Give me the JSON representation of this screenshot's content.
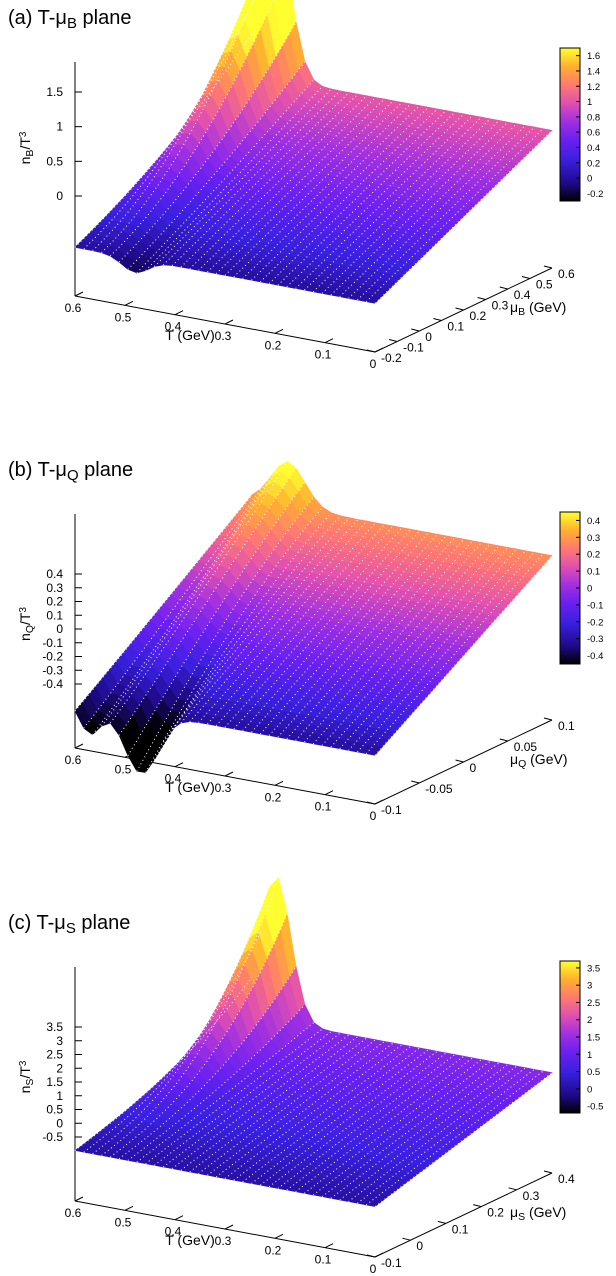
{
  "chart_data": [
    {
      "type": "surface",
      "title": "(a) T-μ",
      "title_sub": "B",
      "title_suffix": " plane",
      "z_label": "n",
      "z_label_sub": "B",
      "z_label_suffix": "/T",
      "z_label_sup": "3",
      "x_label": "T (GeV)",
      "y_label": "μ",
      "y_label_sub": "B",
      "y_label_suffix": " (GeV)",
      "x_ticks": [
        "0.6",
        "0.5",
        "0.4",
        "0.3",
        "0.2",
        "0.1",
        "0"
      ],
      "x_range": [
        0,
        0.6
      ],
      "y_ticks": [
        "-0.2",
        "-0.1",
        "0",
        "0.1",
        "0.2",
        "0.3",
        "0.4",
        "0.5",
        "0.6"
      ],
      "y_range": [
        -0.2,
        0.6
      ],
      "z_ticks": [
        "1.5",
        "1",
        "0.5",
        "0"
      ],
      "z_range": [
        -0.3,
        1.7
      ],
      "colorbar_ticks": [
        "1.6",
        "1.4",
        "1.2",
        "1",
        "0.8",
        "0.6",
        "0.4",
        "0.2",
        "0",
        "-0.2"
      ],
      "colorbar_range": [
        -0.3,
        1.7
      ],
      "grid": "white dotted mesh on surface",
      "colormap": [
        "#000000",
        "#1f0a8a",
        "#3a20e0",
        "#6a20f0",
        "#a030e0",
        "#e050b0",
        "#ff7a70",
        "#ffb030",
        "#ffff30"
      ]
    },
    {
      "type": "surface",
      "title": "(b) T-μ",
      "title_sub": "Q",
      "title_suffix": " plane",
      "z_label": "n",
      "z_label_sub": "Q",
      "z_label_suffix": "/T",
      "z_label_sup": "3",
      "x_label": "T (GeV)",
      "y_label": "μ",
      "y_label_sub": "Q",
      "y_label_suffix": " (GeV)",
      "x_ticks": [
        "0.6",
        "0.5",
        "0.4",
        "0.3",
        "0.2",
        "0.1",
        "0"
      ],
      "x_range": [
        0,
        0.6
      ],
      "y_ticks": [
        "-0.1",
        "-0.05",
        "0",
        "0.05",
        "0.1"
      ],
      "y_range": [
        -0.1,
        0.1
      ],
      "z_ticks": [
        "0.4",
        "0.3",
        "0.2",
        "0.1",
        "0",
        "-0.1",
        "-0.2",
        "-0.3",
        "-0.4"
      ],
      "z_range": [
        -0.45,
        0.45
      ],
      "colorbar_ticks": [
        "0.4",
        "0.3",
        "0.2",
        "0.1",
        "0",
        "-0.1",
        "-0.2",
        "-0.3",
        "-0.4"
      ],
      "colorbar_range": [
        -0.45,
        0.45
      ],
      "grid": "white dotted mesh on surface",
      "colormap": [
        "#000000",
        "#1f0a8a",
        "#3a20e0",
        "#6a20f0",
        "#a030e0",
        "#e050b0",
        "#ff7a70",
        "#ffb030",
        "#ffff30"
      ]
    },
    {
      "type": "surface",
      "title": "(c) T-μ",
      "title_sub": "S",
      "title_suffix": " plane",
      "z_label": "n",
      "z_label_sub": "S",
      "z_label_suffix": "/T",
      "z_label_sup": "3",
      "x_label": "T (GeV)",
      "y_label": "μ",
      "y_label_sub": "S",
      "y_label_suffix": " (GeV)",
      "x_ticks": [
        "0.6",
        "0.5",
        "0.4",
        "0.3",
        "0.2",
        "0.1",
        "0"
      ],
      "x_range": [
        0,
        0.6
      ],
      "y_ticks": [
        "-0.1",
        "0",
        "0.1",
        "0.2",
        "0.3",
        "0.4"
      ],
      "y_range": [
        -0.1,
        0.4
      ],
      "z_ticks": [
        "3.5",
        "3",
        "2.5",
        "2",
        "1.5",
        "1",
        "0.5",
        "0",
        "-0.5"
      ],
      "z_range": [
        -0.7,
        3.7
      ],
      "colorbar_ticks": [
        "3.5",
        "3",
        "2.5",
        "2",
        "1.5",
        "1",
        "0.5",
        "0",
        "-0.5"
      ],
      "colorbar_range": [
        -0.7,
        3.7
      ],
      "grid": "white dotted mesh on surface",
      "colormap": [
        "#000000",
        "#1f0a8a",
        "#3a20e0",
        "#6a20f0",
        "#a030e0",
        "#e050b0",
        "#ff7a70",
        "#ffb030",
        "#ffff30"
      ]
    }
  ]
}
